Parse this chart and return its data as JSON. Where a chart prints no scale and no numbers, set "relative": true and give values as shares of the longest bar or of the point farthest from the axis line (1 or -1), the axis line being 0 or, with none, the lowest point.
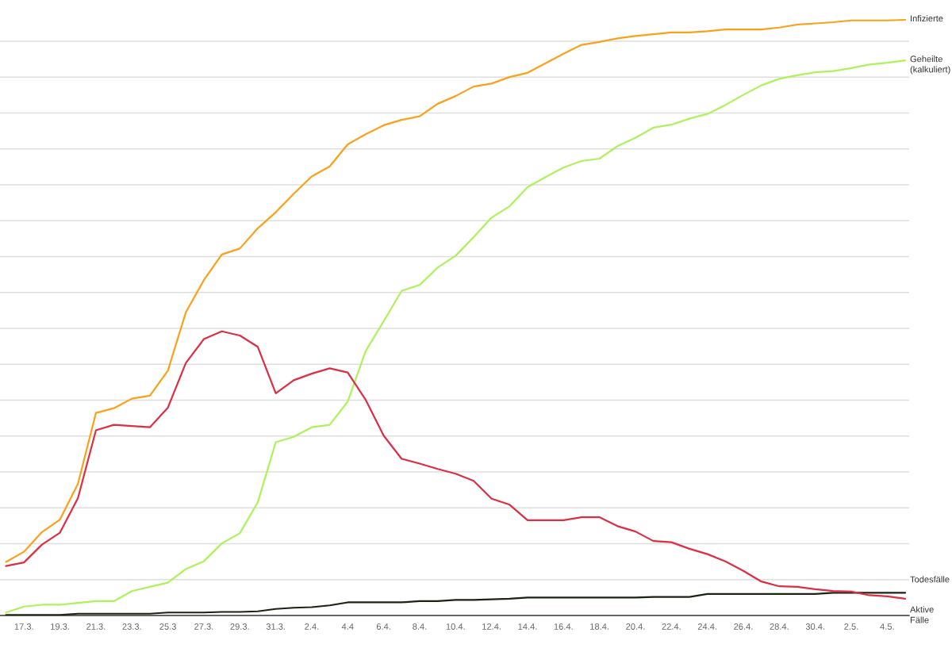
{
  "chart_data": {
    "type": "line",
    "relative": true,
    "grid": "y",
    "tick_labels": "x",
    "categories": [
      null,
      "17.3.",
      null,
      "19.3.",
      null,
      "21.3.",
      null,
      "23.3.",
      null,
      "25.3",
      null,
      "27.3.",
      null,
      "29.3.",
      null,
      "31.3.",
      null,
      "2.4.",
      null,
      "4.4",
      null,
      "6.4.",
      null,
      "8.4.",
      null,
      "10.4.",
      null,
      "12.4.",
      null,
      "14.4.",
      null,
      "16.4.",
      null,
      "18.4.",
      null,
      "20.4.",
      null,
      "22.4.",
      null,
      "24.4.",
      null,
      "26.4.",
      null,
      "28.4.",
      null,
      "30.4.",
      null,
      "2.5.",
      null,
      "4.5.",
      null
    ],
    "series": [
      {
        "name": "Infizierte",
        "color": "#f9a11b",
        "values": [
          0.09,
          0.107,
          0.14,
          0.161,
          0.221,
          0.34,
          0.348,
          0.364,
          0.369,
          0.411,
          0.509,
          0.563,
          0.606,
          0.616,
          0.65,
          0.677,
          0.708,
          0.737,
          0.754,
          0.791,
          0.808,
          0.823,
          0.832,
          0.838,
          0.859,
          0.872,
          0.888,
          0.893,
          0.904,
          0.911,
          0.927,
          0.943,
          0.958,
          0.963,
          0.969,
          0.973,
          0.976,
          0.979,
          0.979,
          0.981,
          0.984,
          0.984,
          0.984,
          0.987,
          0.992,
          0.994,
          0.996,
          0.999,
          0.999,
          0.999,
          1.0
        ]
      },
      {
        "name": "Geheilte (kalkuliert)",
        "color": "#aef25b",
        "values": [
          0.005,
          0.015,
          0.018,
          0.018,
          0.021,
          0.024,
          0.024,
          0.041,
          0.048,
          0.055,
          0.078,
          0.091,
          0.121,
          0.138,
          0.19,
          0.291,
          0.3,
          0.316,
          0.32,
          0.359,
          0.444,
          0.494,
          0.545,
          0.555,
          0.584,
          0.604,
          0.635,
          0.668,
          0.687,
          0.719,
          0.736,
          0.752,
          0.763,
          0.767,
          0.788,
          0.802,
          0.819,
          0.824,
          0.834,
          0.842,
          0.857,
          0.874,
          0.89,
          0.901,
          0.907,
          0.912,
          0.914,
          0.919,
          0.925,
          0.928,
          0.932
        ]
      },
      {
        "name": "Todesfälle",
        "color": "#1b2312",
        "values": [
          0.001,
          0.001,
          0.001,
          0.001,
          0.003,
          0.003,
          0.003,
          0.003,
          0.003,
          0.005,
          0.005,
          0.005,
          0.006,
          0.006,
          0.007,
          0.011,
          0.013,
          0.014,
          0.017,
          0.022,
          0.022,
          0.022,
          0.022,
          0.024,
          0.024,
          0.026,
          0.026,
          0.027,
          0.028,
          0.03,
          0.03,
          0.03,
          0.03,
          0.03,
          0.03,
          0.03,
          0.031,
          0.031,
          0.031,
          0.036,
          0.036,
          0.036,
          0.036,
          0.036,
          0.036,
          0.036,
          0.038,
          0.038,
          0.038,
          0.038,
          0.038
        ]
      },
      {
        "name": "Aktive Fälle",
        "color": "#dc2f45",
        "values": [
          0.083,
          0.089,
          0.119,
          0.139,
          0.197,
          0.311,
          0.32,
          0.318,
          0.316,
          0.349,
          0.424,
          0.464,
          0.477,
          0.47,
          0.451,
          0.373,
          0.395,
          0.406,
          0.415,
          0.408,
          0.362,
          0.302,
          0.263,
          0.255,
          0.246,
          0.238,
          0.226,
          0.196,
          0.186,
          0.16,
          0.16,
          0.16,
          0.165,
          0.165,
          0.15,
          0.141,
          0.125,
          0.123,
          0.112,
          0.103,
          0.091,
          0.075,
          0.057,
          0.049,
          0.048,
          0.044,
          0.041,
          0.04,
          0.034,
          0.032,
          0.028
        ]
      }
    ]
  }
}
